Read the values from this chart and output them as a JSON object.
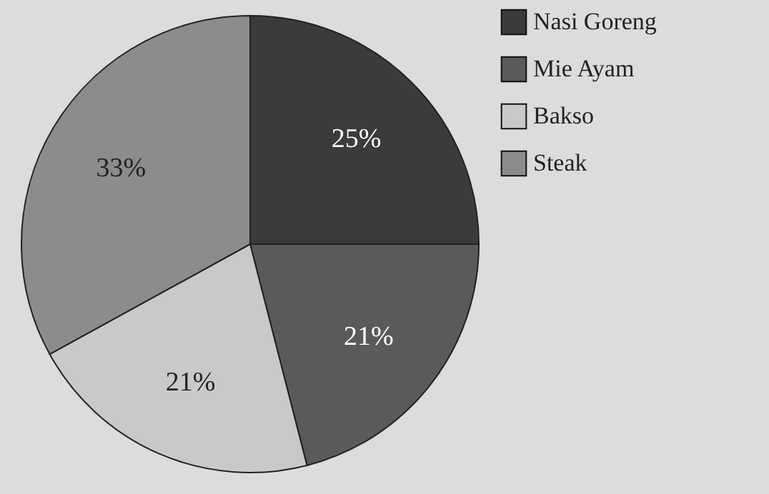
{
  "chart_data": {
    "type": "pie",
    "categories": [
      "Nasi Goreng",
      "Mie Ayam",
      "Bakso",
      "Steak"
    ],
    "values": [
      25,
      21,
      21,
      33
    ],
    "value_labels": [
      "25%",
      "21%",
      "21%",
      "33%"
    ],
    "colors": [
      "#3b3b3b",
      "#5a5a5a",
      "#c9c9c9",
      "#8c8c8c"
    ],
    "legend": "right"
  }
}
